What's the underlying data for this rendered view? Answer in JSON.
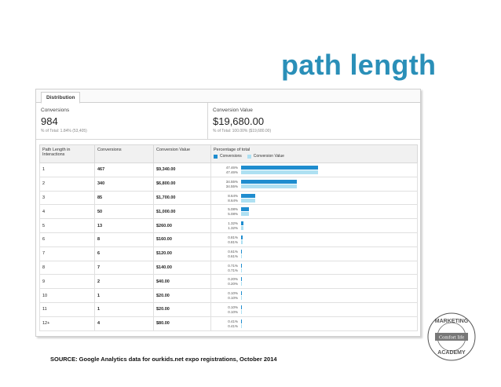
{
  "slide": {
    "title": "path length"
  },
  "tab": {
    "label": "Distribution"
  },
  "summary": {
    "conversions": {
      "label": "Conversions",
      "value": "984",
      "sub": "% of Total: 1.84% (53,405)"
    },
    "conversion_value": {
      "label": "Conversion Value",
      "value": "$19,680.00",
      "sub": "% of Total: 100.00% ($19,680.00)"
    }
  },
  "table": {
    "headers": {
      "path_length": "Path Length in Interactions",
      "conversions": "Conversions",
      "conversion_value": "Conversion Value",
      "percentage": "Percentage of total"
    },
    "legend": {
      "conversions": "Conversions",
      "conversion_value": "Conversion Value"
    },
    "rows": [
      {
        "path": "1",
        "conversions": "467",
        "value": "$9,340.00",
        "pct_c": "47.46%",
        "pct_v": "47.46%",
        "pct_num": 47.46
      },
      {
        "path": "2",
        "conversions": "340",
        "value": "$6,800.00",
        "pct_c": "34.55%",
        "pct_v": "34.55%",
        "pct_num": 34.55
      },
      {
        "path": "3",
        "conversions": "85",
        "value": "$1,700.00",
        "pct_c": "8.64%",
        "pct_v": "8.64%",
        "pct_num": 8.64
      },
      {
        "path": "4",
        "conversions": "50",
        "value": "$1,000.00",
        "pct_c": "5.08%",
        "pct_v": "5.08%",
        "pct_num": 5.08
      },
      {
        "path": "5",
        "conversions": "13",
        "value": "$260.00",
        "pct_c": "1.32%",
        "pct_v": "1.32%",
        "pct_num": 1.32
      },
      {
        "path": "6",
        "conversions": "8",
        "value": "$160.00",
        "pct_c": "0.81%",
        "pct_v": "0.81%",
        "pct_num": 0.81
      },
      {
        "path": "7",
        "conversions": "6",
        "value": "$120.00",
        "pct_c": "0.61%",
        "pct_v": "0.61%",
        "pct_num": 0.61
      },
      {
        "path": "8",
        "conversions": "7",
        "value": "$140.00",
        "pct_c": "0.71%",
        "pct_v": "0.71%",
        "pct_num": 0.71
      },
      {
        "path": "9",
        "conversions": "2",
        "value": "$40.00",
        "pct_c": "0.20%",
        "pct_v": "0.20%",
        "pct_num": 0.2
      },
      {
        "path": "10",
        "conversions": "1",
        "value": "$20.00",
        "pct_c": "0.10%",
        "pct_v": "0.10%",
        "pct_num": 0.1
      },
      {
        "path": "11",
        "conversions": "1",
        "value": "$20.00",
        "pct_c": "0.10%",
        "pct_v": "0.10%",
        "pct_num": 0.1
      },
      {
        "path": "12+",
        "conversions": "4",
        "value": "$80.00",
        "pct_c": "0.41%",
        "pct_v": "0.41%",
        "pct_num": 0.41
      }
    ]
  },
  "source": "SOURCE: Google Analytics data for ourkids.net expo registrations, October 2014",
  "logo": {
    "top": "MARKETING",
    "middle": "Comfort life",
    "bottom": "ACADEMY",
    "icon": "marketing-academy-badge"
  },
  "colors": {
    "title": "#2a8fb8",
    "conversions_bar": "#1f8dcf",
    "value_bar": "#aee0f2"
  }
}
